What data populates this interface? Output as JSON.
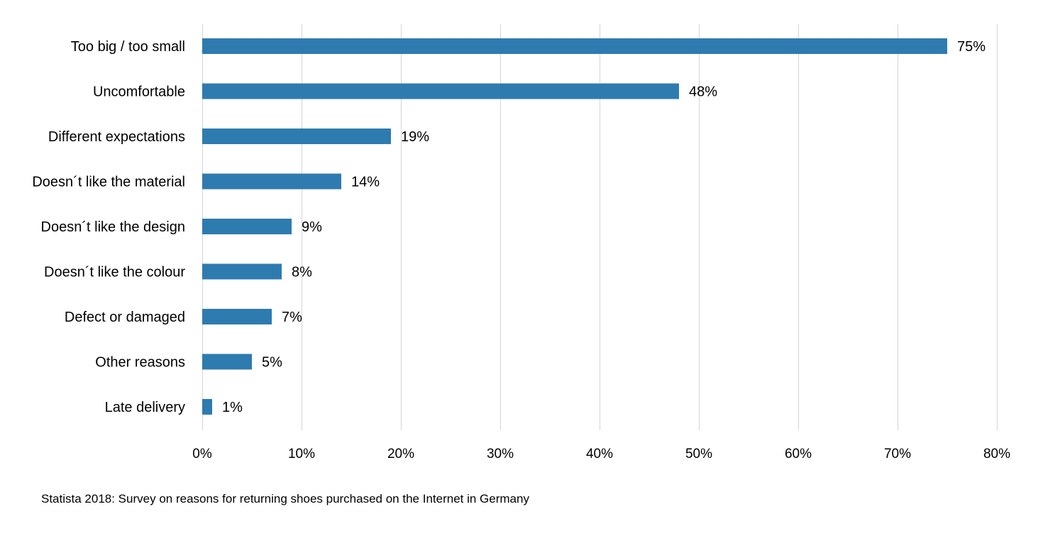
{
  "chart_data": {
    "type": "bar",
    "orientation": "horizontal",
    "categories": [
      "Too big / too small",
      "Uncomfortable",
      "Different expectations",
      "Doesn´t like the material",
      "Doesn´t like the design",
      "Doesn´t like the colour",
      "Defect or damaged",
      "Other reasons",
      "Late delivery"
    ],
    "values": [
      75,
      48,
      19,
      14,
      9,
      8,
      7,
      5,
      1
    ],
    "value_labels": [
      "75%",
      "48%",
      "19%",
      "14%",
      "9%",
      "8%",
      "7%",
      "5%",
      "1%"
    ],
    "xlim": [
      0,
      80
    ],
    "x_ticks": [
      0,
      10,
      20,
      30,
      40,
      50,
      60,
      70,
      80
    ],
    "x_tick_labels": [
      "0%",
      "10%",
      "20%",
      "30%",
      "40%",
      "50%",
      "60%",
      "70%",
      "80%"
    ],
    "grid": "vertical",
    "bar_color": "#2e7bb0",
    "grid_color": "#d9d9d9",
    "title": "",
    "xlabel": "",
    "ylabel": ""
  },
  "source_note": "Statista 2018: Survey on reasons for returning shoes purchased on the Internet in Germany"
}
